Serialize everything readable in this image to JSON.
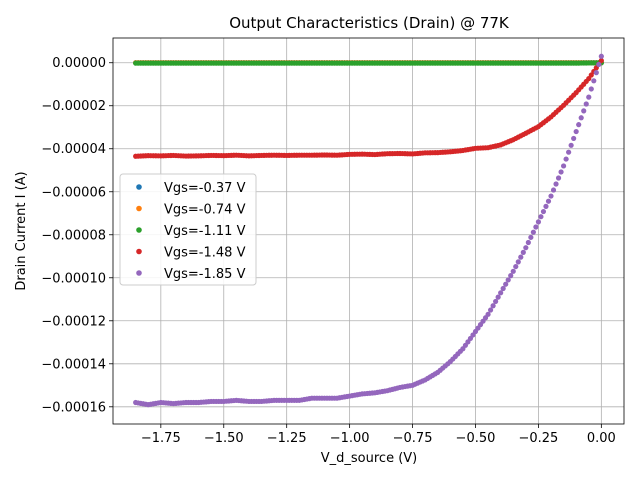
{
  "chart_data": {
    "type": "scatter",
    "title": "Output Characteristics (Drain) @ 77K",
    "xlabel": "V_d_source (V)",
    "ylabel": "Drain Current I (A)",
    "xlim": [
      -1.94,
      0.09
    ],
    "ylim": [
      -0.000168,
      1.15e-05
    ],
    "xticks": [
      -1.75,
      -1.5,
      -1.25,
      -1.0,
      -0.75,
      -0.5,
      -0.25,
      0.0
    ],
    "xtick_labels": [
      "−1.75",
      "−1.50",
      "−1.25",
      "−1.00",
      "−0.75",
      "−0.50",
      "−0.25",
      "0.00"
    ],
    "yticks": [
      0.0,
      -2e-05,
      -4e-05,
      -6e-05,
      -8e-05,
      -0.0001,
      -0.00012,
      -0.00014,
      -0.00016
    ],
    "ytick_labels": [
      "0.00000",
      "−0.00002",
      "−0.00004",
      "−0.00006",
      "−0.00008",
      "−0.00010",
      "−0.00012",
      "−0.00014",
      "−0.00016"
    ],
    "grid": true,
    "legend_position": "center-left",
    "x": [
      -1.85,
      -1.8,
      -1.75,
      -1.7,
      -1.65,
      -1.6,
      -1.55,
      -1.5,
      -1.45,
      -1.4,
      -1.35,
      -1.3,
      -1.25,
      -1.2,
      -1.15,
      -1.1,
      -1.05,
      -1.0,
      -0.95,
      -0.9,
      -0.85,
      -0.8,
      -0.75,
      -0.7,
      -0.65,
      -0.6,
      -0.55,
      -0.5,
      -0.45,
      -0.4,
      -0.35,
      -0.3,
      -0.25,
      -0.2,
      -0.15,
      -0.1,
      -0.05,
      0.0
    ],
    "series": [
      {
        "name": "Vgs=-0.37 V",
        "color": "#1f77b4",
        "values": [
          0,
          0,
          0,
          0,
          0,
          0,
          0,
          0,
          0,
          0,
          0,
          0,
          0,
          0,
          0,
          0,
          0,
          0,
          0,
          0,
          0,
          0,
          0,
          0,
          0,
          0,
          0,
          0,
          0,
          0,
          0,
          0,
          0,
          0,
          0,
          0,
          0,
          0
        ]
      },
      {
        "name": "Vgs=-0.74 V",
        "color": "#ff7f0e",
        "values": [
          0,
          0,
          0,
          0,
          0,
          0,
          0,
          0,
          0,
          0,
          0,
          0,
          0,
          0,
          0,
          0,
          0,
          0,
          0,
          0,
          0,
          0,
          0,
          0,
          0,
          0,
          0,
          0,
          0,
          0,
          0,
          0,
          0,
          0,
          0,
          0,
          0,
          0
        ]
      },
      {
        "name": "Vgs=-1.11 V",
        "color": "#2ca02c",
        "values": [
          -2e-07,
          -2e-07,
          -2e-07,
          -2e-07,
          -2e-07,
          -2e-07,
          -2e-07,
          -2e-07,
          -2e-07,
          -2e-07,
          -2e-07,
          -2e-07,
          -2e-07,
          -2e-07,
          -2e-07,
          -2e-07,
          -2e-07,
          -2e-07,
          -2e-07,
          -2e-07,
          -2e-07,
          -2e-07,
          -2e-07,
          -2e-07,
          -2e-07,
          -2e-07,
          -2e-07,
          -2e-07,
          -2e-07,
          -2e-07,
          -2e-07,
          -2e-07,
          -2e-07,
          -2e-07,
          -2e-07,
          -2e-07,
          -1e-07,
          0
        ]
      },
      {
        "name": "Vgs=-1.48 V",
        "color": "#d62728",
        "values": [
          -4.35e-05,
          -4.32e-05,
          -4.33e-05,
          -4.31e-05,
          -4.34e-05,
          -4.33e-05,
          -4.31e-05,
          -4.32e-05,
          -4.3e-05,
          -4.33e-05,
          -4.31e-05,
          -4.3e-05,
          -4.31e-05,
          -4.3e-05,
          -4.3e-05,
          -4.29e-05,
          -4.3e-05,
          -4.26e-05,
          -4.25e-05,
          -4.27e-05,
          -4.23e-05,
          -4.22e-05,
          -4.24e-05,
          -4.19e-05,
          -4.18e-05,
          -4.14e-05,
          -4.08e-05,
          -3.98e-05,
          -3.95e-05,
          -3.82e-05,
          -3.58e-05,
          -3.28e-05,
          -2.97e-05,
          -2.52e-05,
          -1.98e-05,
          -1.39e-05,
          -7.4e-06,
          1e-06
        ]
      },
      {
        "name": "Vgs=-1.85 V",
        "color": "#9467bd",
        "values": [
          -0.000158,
          -0.000159,
          -0.000158,
          -0.0001585,
          -0.000158,
          -0.000158,
          -0.0001575,
          -0.0001575,
          -0.000157,
          -0.0001575,
          -0.0001575,
          -0.000157,
          -0.000157,
          -0.000157,
          -0.000156,
          -0.000156,
          -0.000156,
          -0.000155,
          -0.000154,
          -0.0001535,
          -0.0001525,
          -0.000151,
          -0.00015,
          -0.0001475,
          -0.000144,
          -0.000139,
          -0.000133,
          -0.000125,
          -0.000117,
          -0.000107,
          -9.7e-05,
          -8.6e-05,
          -7.4e-05,
          -6.2e-05,
          -4.8e-05,
          -3.2e-05,
          -1.6e-05,
          3e-06
        ]
      }
    ]
  }
}
